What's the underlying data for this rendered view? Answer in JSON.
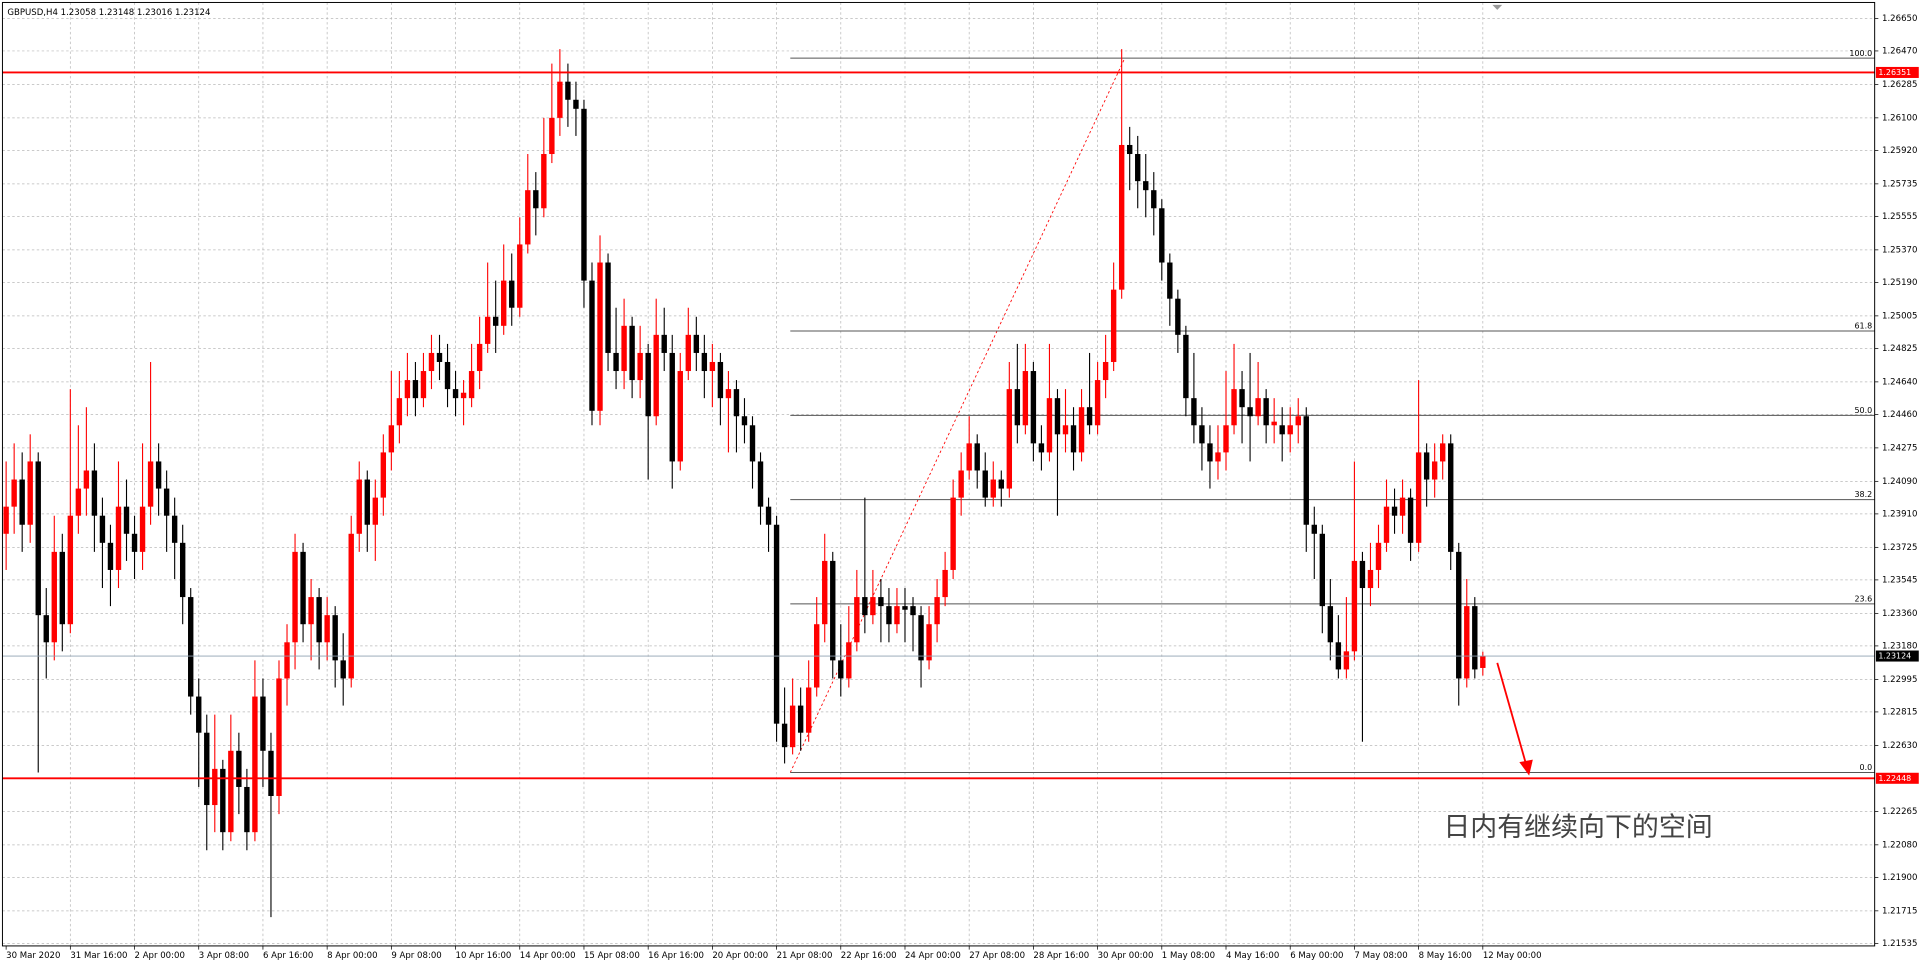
{
  "chart_data": {
    "type": "candlestick",
    "title": "GBPUSD,H4  1.23058 1.23148 1.23016 1.23124",
    "bull_color": "#ff0000",
    "bear_color": "#000000",
    "grid": true,
    "ylim": [
      1.21521,
      1.26738
    ],
    "yticks": [
      {
        "value": 1.2665,
        "label": "1.26650"
      },
      {
        "value": 1.2647,
        "label": "1.26470"
      },
      {
        "value": 1.26285,
        "label": "1.26285"
      },
      {
        "value": 1.261,
        "label": "1.26100"
      },
      {
        "value": 1.2592,
        "label": "1.25920"
      },
      {
        "value": 1.25735,
        "label": "1.25735"
      },
      {
        "value": 1.25555,
        "label": "1.25555"
      },
      {
        "value": 1.2537,
        "label": "1.25370"
      },
      {
        "value": 1.2519,
        "label": "1.25190"
      },
      {
        "value": 1.25005,
        "label": "1.25005"
      },
      {
        "value": 1.24825,
        "label": "1.24825"
      },
      {
        "value": 1.2464,
        "label": "1.24640"
      },
      {
        "value": 1.2446,
        "label": "1.24460"
      },
      {
        "value": 1.24275,
        "label": "1.24275"
      },
      {
        "value": 1.2409,
        "label": "1.24090"
      },
      {
        "value": 1.2391,
        "label": "1.23910"
      },
      {
        "value": 1.23725,
        "label": "1.23725"
      },
      {
        "value": 1.23545,
        "label": "1.23545"
      },
      {
        "value": 1.2336,
        "label": "1.23360"
      },
      {
        "value": 1.2318,
        "label": "1.23180"
      },
      {
        "value": 1.22995,
        "label": "1.22995"
      },
      {
        "value": 1.22815,
        "label": "1.22815"
      },
      {
        "value": 1.2263,
        "label": "1.22630"
      },
      {
        "value": 1.22265,
        "label": "1.22265"
      },
      {
        "value": 1.2208,
        "label": "1.22080"
      },
      {
        "value": 1.219,
        "label": "1.21900"
      },
      {
        "value": 1.21715,
        "label": "1.21715"
      },
      {
        "value": 1.21535,
        "label": "1.21535"
      }
    ],
    "categories": [
      "30 Mar 2020",
      null,
      null,
      null,
      null,
      null,
      null,
      null,
      "31 Mar 16:00",
      null,
      null,
      null,
      null,
      null,
      null,
      null,
      "2 Apr 00:00",
      null,
      null,
      null,
      null,
      null,
      null,
      null,
      "3 Apr 08:00",
      null,
      null,
      null,
      null,
      null,
      null,
      null,
      "6 Apr 16:00",
      null,
      null,
      null,
      null,
      null,
      null,
      null,
      "8 Apr 00:00",
      null,
      null,
      null,
      null,
      null,
      null,
      null,
      "9 Apr 08:00",
      null,
      null,
      null,
      null,
      null,
      null,
      null,
      "10 Apr 16:00",
      null,
      null,
      null,
      null,
      null,
      null,
      null,
      "14 Apr 00:00",
      null,
      null,
      null,
      null,
      null,
      null,
      null,
      "15 Apr 08:00",
      null,
      null,
      null,
      null,
      null,
      null,
      null,
      "16 Apr 16:00",
      null,
      null,
      null,
      null,
      null,
      null,
      null,
      "20 Apr 00:00",
      null,
      null,
      null,
      null,
      null,
      null,
      null,
      "21 Apr 08:00",
      null,
      null,
      null,
      null,
      null,
      null,
      null,
      "22 Apr 16:00",
      null,
      null,
      null,
      null,
      null,
      null,
      null,
      "24 Apr 00:00",
      null,
      null,
      null,
      null,
      null,
      null,
      null,
      "27 Apr 08:00",
      null,
      null,
      null,
      null,
      null,
      null,
      null,
      "28 Apr 16:00",
      null,
      null,
      null,
      null,
      null,
      null,
      null,
      "30 Apr 00:00",
      null,
      null,
      null,
      null,
      null,
      null,
      null,
      "1 May 08:00",
      null,
      null,
      null,
      null,
      null,
      null,
      null,
      "4 May 16:00",
      null,
      null,
      null,
      null,
      null,
      null,
      null,
      "6 May 00:00",
      null,
      null,
      null,
      null,
      null,
      null,
      null,
      "7 May 08:00",
      null,
      null,
      null,
      null,
      null,
      null,
      null,
      "8 May 16:00",
      null,
      null,
      null,
      null,
      null,
      null,
      null,
      "12 May 00:00"
    ],
    "candles": [
      [
        1.238,
        1.242,
        1.236,
        1.2395
      ],
      [
        1.2395,
        1.243,
        1.238,
        1.241
      ],
      [
        1.241,
        1.2425,
        1.237,
        1.2385
      ],
      [
        1.2385,
        1.2435,
        1.2375,
        1.242
      ],
      [
        1.242,
        1.2425,
        1.2248,
        1.2335
      ],
      [
        1.2335,
        1.235,
        1.23,
        1.232
      ],
      [
        1.232,
        1.239,
        1.231,
        1.237
      ],
      [
        1.237,
        1.238,
        1.2315,
        1.233
      ],
      [
        1.233,
        1.246,
        1.2325,
        1.239
      ],
      [
        1.239,
        1.244,
        1.238,
        1.2405
      ],
      [
        1.2405,
        1.245,
        1.239,
        1.2415
      ],
      [
        1.2415,
        1.243,
        1.237,
        1.239
      ],
      [
        1.239,
        1.24,
        1.235,
        1.2375
      ],
      [
        1.2375,
        1.2385,
        1.234,
        1.236
      ],
      [
        1.236,
        1.242,
        1.235,
        1.2395
      ],
      [
        1.2395,
        1.241,
        1.2365,
        1.238
      ],
      [
        1.238,
        1.239,
        1.2355,
        1.237
      ],
      [
        1.237,
        1.243,
        1.236,
        1.2395
      ],
      [
        1.2395,
        1.2475,
        1.2385,
        1.242
      ],
      [
        1.242,
        1.243,
        1.239,
        1.2405
      ],
      [
        1.2405,
        1.2415,
        1.237,
        1.239
      ],
      [
        1.239,
        1.24,
        1.2355,
        1.2375
      ],
      [
        1.2375,
        1.2385,
        1.233,
        1.2345
      ],
      [
        1.2345,
        1.235,
        1.228,
        1.229
      ],
      [
        1.229,
        1.23,
        1.224,
        1.227
      ],
      [
        1.227,
        1.228,
        1.2205,
        1.223
      ],
      [
        1.223,
        1.228,
        1.2215,
        1.225
      ],
      [
        1.225,
        1.2255,
        1.2205,
        1.2215
      ],
      [
        1.2215,
        1.228,
        1.221,
        1.226
      ],
      [
        1.226,
        1.227,
        1.2225,
        1.224
      ],
      [
        1.224,
        1.225,
        1.2205,
        1.2215
      ],
      [
        1.2215,
        1.231,
        1.221,
        1.229
      ],
      [
        1.229,
        1.23,
        1.224,
        1.226
      ],
      [
        1.226,
        1.227,
        1.2168,
        1.2235
      ],
      [
        1.2235,
        1.231,
        1.2225,
        1.23
      ],
      [
        1.23,
        1.233,
        1.2285,
        1.232
      ],
      [
        1.232,
        1.238,
        1.2305,
        1.237
      ],
      [
        1.237,
        1.2375,
        1.232,
        1.233
      ],
      [
        1.233,
        1.2355,
        1.231,
        1.2345
      ],
      [
        1.2345,
        1.235,
        1.2305,
        1.232
      ],
      [
        1.232,
        1.2345,
        1.231,
        1.2335
      ],
      [
        1.2335,
        1.234,
        1.2295,
        1.231
      ],
      [
        1.231,
        1.2325,
        1.2285,
        1.23
      ],
      [
        1.23,
        1.239,
        1.2295,
        1.238
      ],
      [
        1.238,
        1.242,
        1.237,
        1.241
      ],
      [
        1.241,
        1.2415,
        1.237,
        1.2385
      ],
      [
        1.2385,
        1.241,
        1.2365,
        1.24
      ],
      [
        1.24,
        1.2435,
        1.239,
        1.2425
      ],
      [
        1.2425,
        1.247,
        1.2415,
        1.244
      ],
      [
        1.244,
        1.247,
        1.243,
        1.2455
      ],
      [
        1.2455,
        1.248,
        1.2445,
        1.2465
      ],
      [
        1.2465,
        1.2475,
        1.2445,
        1.2455
      ],
      [
        1.2455,
        1.248,
        1.245,
        1.247
      ],
      [
        1.247,
        1.249,
        1.246,
        1.248
      ],
      [
        1.248,
        1.249,
        1.2465,
        1.2475
      ],
      [
        1.2475,
        1.2485,
        1.245,
        1.246
      ],
      [
        1.246,
        1.247,
        1.2445,
        1.2455
      ],
      [
        1.2455,
        1.2465,
        1.244,
        1.2458
      ],
      [
        1.2455,
        1.2485,
        1.245,
        1.247
      ],
      [
        1.247,
        1.25,
        1.246,
        1.2485
      ],
      [
        1.2485,
        1.253,
        1.248,
        1.25
      ],
      [
        1.25,
        1.252,
        1.248,
        1.2495
      ],
      [
        1.2495,
        1.254,
        1.249,
        1.252
      ],
      [
        1.252,
        1.2535,
        1.2495,
        1.2505
      ],
      [
        1.2505,
        1.2555,
        1.25,
        1.254
      ],
      [
        1.254,
        1.259,
        1.2535,
        1.257
      ],
      [
        1.257,
        1.258,
        1.2545,
        1.256
      ],
      [
        1.256,
        1.261,
        1.2555,
        1.259
      ],
      [
        1.259,
        1.264,
        1.2585,
        1.261
      ],
      [
        1.261,
        1.2648,
        1.26,
        1.263
      ],
      [
        1.263,
        1.264,
        1.2605,
        1.262
      ],
      [
        1.262,
        1.263,
        1.26,
        1.2615
      ],
      [
        1.2615,
        1.262,
        1.2505,
        1.252
      ],
      [
        1.252,
        1.253,
        1.244,
        1.2448
      ],
      [
        1.2448,
        1.2545,
        1.244,
        1.253
      ],
      [
        1.253,
        1.2535,
        1.247,
        1.248
      ],
      [
        1.248,
        1.2505,
        1.246,
        1.247
      ],
      [
        1.247,
        1.251,
        1.246,
        1.2495
      ],
      [
        1.2495,
        1.25,
        1.2455,
        1.2465
      ],
      [
        1.2465,
        1.2495,
        1.2455,
        1.248
      ],
      [
        1.248,
        1.2485,
        1.241,
        1.2445
      ],
      [
        1.2445,
        1.251,
        1.244,
        1.249
      ],
      [
        1.249,
        1.2505,
        1.247,
        1.248
      ],
      [
        1.248,
        1.249,
        1.2405,
        1.242
      ],
      [
        1.242,
        1.248,
        1.2415,
        1.247
      ],
      [
        1.247,
        1.2505,
        1.2465,
        1.249
      ],
      [
        1.249,
        1.25,
        1.247,
        1.248
      ],
      [
        1.248,
        1.249,
        1.2455,
        1.247
      ],
      [
        1.247,
        1.2485,
        1.245,
        1.2475
      ],
      [
        1.2475,
        1.248,
        1.244,
        1.2455
      ],
      [
        1.2455,
        1.247,
        1.2425,
        1.246
      ],
      [
        1.246,
        1.2465,
        1.2425,
        1.2445
      ],
      [
        1.2445,
        1.2455,
        1.243,
        1.244
      ],
      [
        1.244,
        1.2445,
        1.2405,
        1.242
      ],
      [
        1.242,
        1.2425,
        1.2385,
        1.2395
      ],
      [
        1.2395,
        1.24,
        1.237,
        1.2385
      ],
      [
        1.2385,
        1.239,
        1.2265,
        1.2275
      ],
      [
        1.2275,
        1.2295,
        1.2253,
        1.2262
      ],
      [
        1.2262,
        1.23,
        1.2258,
        1.2285
      ],
      [
        1.2285,
        1.2295,
        1.226,
        1.227
      ],
      [
        1.227,
        1.231,
        1.2265,
        1.2295
      ],
      [
        1.2295,
        1.2345,
        1.229,
        1.233
      ],
      [
        1.233,
        1.238,
        1.232,
        1.2365
      ],
      [
        1.2365,
        1.237,
        1.23,
        1.231
      ],
      [
        1.231,
        1.233,
        1.229,
        1.23
      ],
      [
        1.23,
        1.234,
        1.2295,
        1.232
      ],
      [
        1.232,
        1.236,
        1.2315,
        1.2345
      ],
      [
        1.2345,
        1.24,
        1.2325,
        1.2335
      ],
      [
        1.2335,
        1.236,
        1.233,
        1.2345
      ],
      [
        1.2345,
        1.2355,
        1.232,
        1.234
      ],
      [
        1.234,
        1.235,
        1.232,
        1.233
      ],
      [
        1.233,
        1.235,
        1.2325,
        1.234
      ],
      [
        1.234,
        1.235,
        1.232,
        1.2338
      ],
      [
        1.234,
        1.2345,
        1.2315,
        1.2335
      ],
      [
        1.2335,
        1.234,
        1.2295,
        1.231
      ],
      [
        1.231,
        1.234,
        1.2305,
        1.233
      ],
      [
        1.233,
        1.2355,
        1.232,
        1.2345
      ],
      [
        1.2345,
        1.237,
        1.234,
        1.236
      ],
      [
        1.236,
        1.241,
        1.2355,
        1.24
      ],
      [
        1.24,
        1.2425,
        1.239,
        1.2415
      ],
      [
        1.2415,
        1.2445,
        1.241,
        1.243
      ],
      [
        1.243,
        1.2435,
        1.2405,
        1.2415
      ],
      [
        1.2415,
        1.2425,
        1.2395,
        1.24
      ],
      [
        1.24,
        1.242,
        1.2395,
        1.241
      ],
      [
        1.241,
        1.2415,
        1.2395,
        1.2405
      ],
      [
        1.2405,
        1.2475,
        1.24,
        1.246
      ],
      [
        1.246,
        1.2485,
        1.243,
        1.244
      ],
      [
        1.244,
        1.2485,
        1.2435,
        1.247
      ],
      [
        1.247,
        1.2475,
        1.242,
        1.243
      ],
      [
        1.243,
        1.244,
        1.2415,
        1.2425
      ],
      [
        1.2425,
        1.2485,
        1.242,
        1.2455
      ],
      [
        1.2455,
        1.246,
        1.239,
        1.2435
      ],
      [
        1.2435,
        1.246,
        1.2425,
        1.244
      ],
      [
        1.244,
        1.245,
        1.2415,
        1.2425
      ],
      [
        1.2425,
        1.246,
        1.242,
        1.245
      ],
      [
        1.245,
        1.248,
        1.2435,
        1.244
      ],
      [
        1.244,
        1.2475,
        1.2435,
        1.2465
      ],
      [
        1.2465,
        1.249,
        1.2455,
        1.2475
      ],
      [
        1.2475,
        1.253,
        1.247,
        1.2515
      ],
      [
        1.2515,
        1.2648,
        1.251,
        1.2595
      ],
      [
        1.2595,
        1.2605,
        1.257,
        1.259
      ],
      [
        1.259,
        1.26,
        1.256,
        1.2575
      ],
      [
        1.2575,
        1.259,
        1.2555,
        1.257
      ],
      [
        1.257,
        1.258,
        1.2545,
        1.256
      ],
      [
        1.256,
        1.2565,
        1.252,
        1.253
      ],
      [
        1.253,
        1.2535,
        1.2495,
        1.251
      ],
      [
        1.251,
        1.2515,
        1.248,
        1.249
      ],
      [
        1.249,
        1.2495,
        1.2445,
        1.2455
      ],
      [
        1.2455,
        1.248,
        1.243,
        1.244
      ],
      [
        1.244,
        1.245,
        1.2415,
        1.243
      ],
      [
        1.243,
        1.244,
        1.2405,
        1.242
      ],
      [
        1.242,
        1.244,
        1.241,
        1.2425
      ],
      [
        1.2425,
        1.247,
        1.2415,
        1.244
      ],
      [
        1.244,
        1.2485,
        1.2435,
        1.246
      ],
      [
        1.246,
        1.247,
        1.243,
        1.245
      ],
      [
        1.245,
        1.248,
        1.242,
        1.2445
      ],
      [
        1.2445,
        1.2475,
        1.244,
        1.2455
      ],
      [
        1.2455,
        1.246,
        1.243,
        1.244
      ],
      [
        1.244,
        1.2455,
        1.243,
        1.2442
      ],
      [
        1.244,
        1.245,
        1.242,
        1.2435
      ],
      [
        1.2435,
        1.245,
        1.2425,
        1.244
      ],
      [
        1.244,
        1.2455,
        1.243,
        1.2445
      ],
      [
        1.2445,
        1.245,
        1.237,
        1.2385
      ],
      [
        1.2385,
        1.2395,
        1.2355,
        1.238
      ],
      [
        1.238,
        1.2385,
        1.2325,
        1.234
      ],
      [
        1.234,
        1.2355,
        1.231,
        1.232
      ],
      [
        1.232,
        1.2335,
        1.23,
        1.2305
      ],
      [
        1.2305,
        1.2345,
        1.23,
        1.2315
      ],
      [
        1.2315,
        1.242,
        1.231,
        1.2365
      ],
      [
        1.2365,
        1.237,
        1.2265,
        1.235
      ],
      [
        1.235,
        1.2375,
        1.234,
        1.236
      ],
      [
        1.236,
        1.2385,
        1.235,
        1.2375
      ],
      [
        1.2375,
        1.241,
        1.237,
        1.2395
      ],
      [
        1.2395,
        1.2405,
        1.238,
        1.239
      ],
      [
        1.239,
        1.241,
        1.238,
        1.24
      ],
      [
        1.24,
        1.2405,
        1.2365,
        1.2375
      ],
      [
        1.2375,
        1.2465,
        1.237,
        1.2425
      ],
      [
        1.2425,
        1.243,
        1.2395,
        1.241
      ],
      [
        1.241,
        1.243,
        1.24,
        1.242
      ],
      [
        1.242,
        1.2435,
        1.241,
        1.243
      ],
      [
        1.243,
        1.2435,
        1.236,
        1.237
      ],
      [
        1.237,
        1.2375,
        1.2285,
        1.23
      ],
      [
        1.23,
        1.2355,
        1.2295,
        1.234
      ],
      [
        1.234,
        1.2345,
        1.23,
        1.2305
      ],
      [
        1.23058,
        1.23148,
        1.23016,
        1.23124
      ]
    ],
    "hlines": [
      {
        "value": 1.26351,
        "color": "#ff0000"
      },
      {
        "value": 1.22448,
        "color": "#ff0000"
      }
    ],
    "last_price": 1.23124,
    "fibo": {
      "from": 1.2248,
      "to": 1.2643,
      "color": "#555555",
      "levels": [
        {
          "value": 100,
          "label": "100.0"
        },
        61.8,
        {
          "value": 50,
          "label": "50.0"
        },
        38.2,
        23.6,
        {
          "value": 0,
          "label": "0.0"
        }
      ]
    },
    "annotation": "日内有继续向下的空间"
  }
}
